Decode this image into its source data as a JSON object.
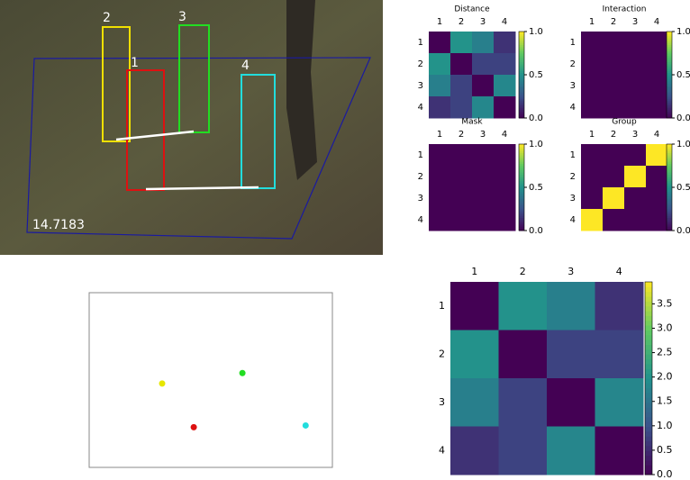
{
  "photo": {
    "frame_label": "14.7183",
    "box_labels": [
      "1",
      "2",
      "3",
      "4"
    ]
  },
  "chart_data": [
    {
      "type": "heatmap",
      "title": "Distance",
      "categories": [
        "1",
        "2",
        "3",
        "4"
      ],
      "values": [
        [
          0,
          0.51,
          0.43,
          0.15
        ],
        [
          0.51,
          0,
          0.2,
          0.2
        ],
        [
          0.43,
          0.2,
          0,
          0.46
        ],
        [
          0.15,
          0.2,
          0.46,
          0
        ]
      ],
      "clim": [
        0,
        1
      ],
      "cticks": [
        {
          "value": 0,
          "label": "0.0"
        },
        0.5,
        {
          "value": 1,
          "label": "1.0"
        }
      ]
    },
    {
      "type": "heatmap",
      "title": "Interaction",
      "categories": [
        "1",
        "2",
        "3",
        "4"
      ],
      "values": [
        [
          0,
          0,
          0,
          0
        ],
        [
          0,
          0,
          0,
          0
        ],
        [
          0,
          0,
          0,
          0
        ],
        [
          0,
          0,
          0,
          0
        ]
      ],
      "clim": [
        0,
        1
      ],
      "cticks": [
        {
          "value": 0,
          "label": "0.0"
        },
        0.5,
        {
          "value": 1,
          "label": "1.0"
        }
      ]
    },
    {
      "type": "heatmap",
      "title": "Mask",
      "categories": [
        "1",
        "2",
        "3",
        "4"
      ],
      "values": [
        [
          0,
          0,
          0,
          0
        ],
        [
          0,
          0,
          0,
          0
        ],
        [
          0,
          0,
          0,
          0
        ],
        [
          0,
          0,
          0,
          0
        ]
      ],
      "clim": [
        0,
        1
      ],
      "cticks": [
        {
          "value": 0,
          "label": "0.0"
        },
        0.5,
        {
          "value": 1,
          "label": "1.0"
        }
      ]
    },
    {
      "type": "heatmap",
      "title": "Group",
      "categories": [
        "1",
        "2",
        "3",
        "4"
      ],
      "values": [
        [
          0,
          0,
          0,
          1
        ],
        [
          0,
          0,
          1,
          0
        ],
        [
          0,
          1,
          0,
          0
        ],
        [
          1,
          0,
          0,
          0
        ]
      ],
      "clim": [
        0,
        1
      ],
      "cticks": [
        {
          "value": 0,
          "label": "0.0"
        },
        0.5,
        {
          "value": 1,
          "label": "1.0"
        }
      ]
    },
    {
      "type": "heatmap",
      "categories": [
        "1",
        "2",
        "3",
        "4"
      ],
      "values": [
        [
          0,
          2.0,
          1.7,
          0.6
        ],
        [
          2.0,
          0,
          0.8,
          0.8
        ],
        [
          1.7,
          0.8,
          0,
          1.8
        ],
        [
          0.6,
          0.8,
          1.8,
          0
        ]
      ],
      "clim": [
        0,
        3.95
      ],
      "cticks": [
        {
          "value": 0,
          "label": "0.0"
        },
        0.5,
        {
          "value": 1,
          "label": "1.0"
        },
        1.5,
        {
          "value": 2,
          "label": "2.0"
        },
        2.5,
        {
          "value": 3,
          "label": "3.0"
        },
        3.5
      ]
    },
    {
      "type": "scatter",
      "xlim": [
        0,
        1
      ],
      "ylim": [
        0,
        1
      ],
      "series": [
        {
          "color": "#e6e600",
          "x": [
            0.3
          ],
          "y": [
            0.48
          ]
        },
        {
          "color": "#22dd22",
          "x": [
            0.63
          ],
          "y": [
            0.54
          ]
        },
        {
          "color": "#dd1111",
          "x": [
            0.43
          ],
          "y": [
            0.23
          ]
        },
        {
          "color": "#22dddd",
          "x": [
            0.89
          ],
          "y": [
            0.24
          ]
        }
      ]
    }
  ]
}
